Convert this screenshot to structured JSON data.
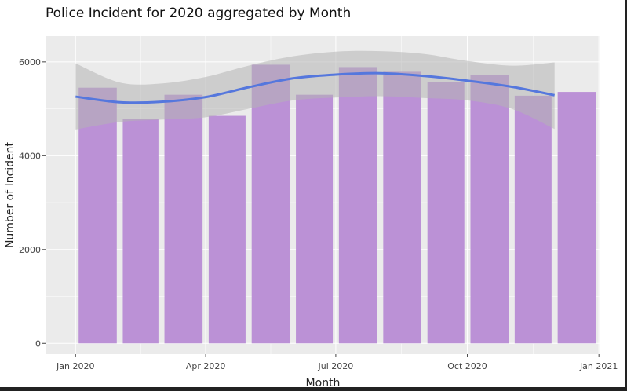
{
  "chart_data": {
    "type": "bar",
    "title": "Police Incident for 2020 aggregated by Month",
    "xlabel": "Month",
    "ylabel": "Number of Incident",
    "categories": [
      "2020-01",
      "2020-02",
      "2020-03",
      "2020-04",
      "2020-05",
      "2020-06",
      "2020-07",
      "2020-08",
      "2020-09",
      "2020-10",
      "2020-11",
      "2020-12"
    ],
    "values": [
      5450,
      4790,
      5300,
      4850,
      5940,
      5300,
      5890,
      5790,
      5570,
      5720,
      5280,
      5360
    ],
    "x_range": [
      "2019-12-11",
      "2021-01-02"
    ],
    "xticks": [
      {
        "date": "2020-01-01",
        "label": "Jan 2020"
      },
      {
        "date": "2020-04-01",
        "label": "Apr 2020"
      },
      {
        "date": "2020-07-01",
        "label": "Jul 2020"
      },
      {
        "date": "2020-10-01",
        "label": "Oct 2020"
      },
      {
        "date": "2021-01-01",
        "label": "Jan 2021"
      }
    ],
    "ylim": [
      -230,
      6550
    ],
    "yticks": [
      0,
      2000,
      4000,
      6000
    ],
    "ytick_labels": [
      "0",
      "2000",
      "4000",
      "6000"
    ],
    "grid": true,
    "trend": {
      "type": "smooth",
      "x": [
        "2020-01-01",
        "2020-02-01",
        "2020-03-01",
        "2020-04-01",
        "2020-05-01",
        "2020-06-01",
        "2020-07-01",
        "2020-08-01",
        "2020-09-01",
        "2020-10-01",
        "2020-11-01",
        "2020-12-01"
      ],
      "y": [
        5260,
        5140,
        5150,
        5250,
        5460,
        5650,
        5730,
        5760,
        5700,
        5600,
        5470,
        5290
      ],
      "lower": [
        4560,
        4720,
        4770,
        4820,
        5000,
        5180,
        5240,
        5270,
        5230,
        5180,
        5000,
        4570
      ],
      "upper": [
        5970,
        5560,
        5540,
        5680,
        5920,
        6120,
        6220,
        6230,
        6170,
        6020,
        5920,
        5990
      ]
    },
    "colors": {
      "bar": "#bb91d6",
      "trend_line": "#5577dd",
      "ribbon": "#b4b4b4",
      "panel": "#ebebeb",
      "grid": "#ffffff"
    }
  }
}
